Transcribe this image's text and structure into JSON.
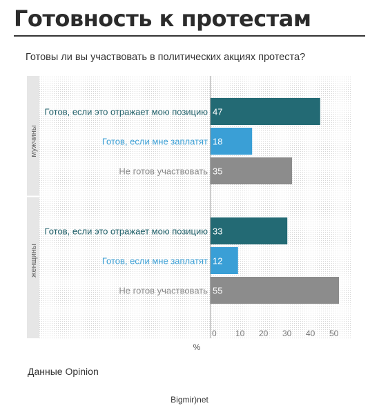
{
  "header": {
    "title": "Готовность к протестам",
    "subtitle": "Готовы ли вы участвовать в политических акциях протеста?"
  },
  "chart_data": {
    "type": "bar",
    "orientation": "horizontal",
    "xlabel": "%",
    "xlim": [
      0,
      55
    ],
    "xticks": [
      0,
      10,
      20,
      30,
      40,
      50
    ],
    "grid": "dotted background",
    "groups": [
      {
        "name": "мужчины",
        "rows": [
          {
            "label": "Готов, если это отражает мою позицию",
            "value": 47,
            "color": "#236a74",
            "label_color": "#1f5f68"
          },
          {
            "label": "Готов, если мне заплатят",
            "value": 18,
            "color": "#3a9fd6",
            "label_color": "#3a9fd6"
          },
          {
            "label": "Не готов участвовать",
            "value": 35,
            "color": "#8c8c8c",
            "label_color": "#888888"
          }
        ]
      },
      {
        "name": "женщины",
        "rows": [
          {
            "label": "Готов, если это отражает мою позицию",
            "value": 33,
            "color": "#236a74",
            "label_color": "#1f5f68"
          },
          {
            "label": "Готов, если мне заплатят",
            "value": 12,
            "color": "#3a9fd6",
            "label_color": "#3a9fd6"
          },
          {
            "label": "Не готов участвовать",
            "value": 55,
            "color": "#8c8c8c",
            "label_color": "#888888"
          }
        ]
      }
    ]
  },
  "footer": {
    "source": "Данные Opinion",
    "brand": "Bigmir)net"
  }
}
